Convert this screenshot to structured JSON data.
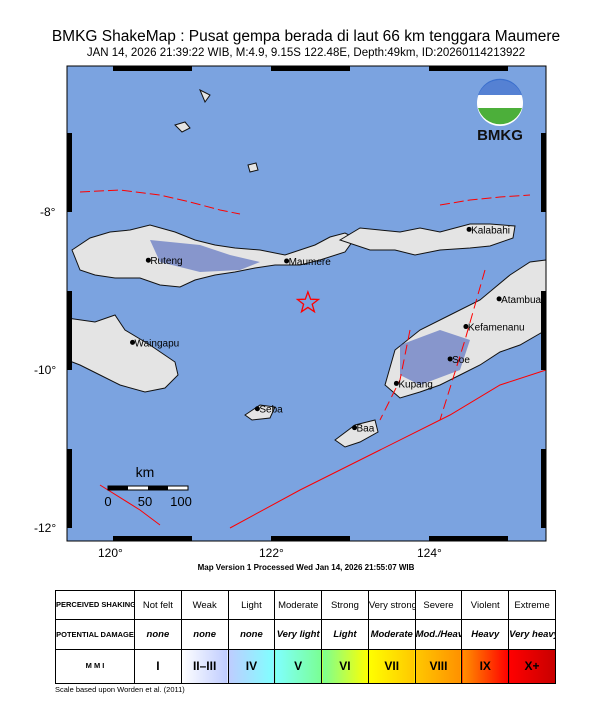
{
  "header": {
    "title": "BMKG ShakeMap : Pusat gempa berada di laut 66 km tenggara Maumere",
    "subtitle": "JAN 14, 2026 21:39:22 WIB, M:4.9, 9.15S 122.48E, Depth:49km, ID:20260114213922"
  },
  "map": {
    "logo_text": "BMKG",
    "epicenter": {
      "lat": -9.15,
      "lon": 122.48,
      "icon": "star-icon",
      "color": "#ff0000"
    },
    "axes": {
      "lat_labels": [
        "-8°",
        "-10°",
        "-12°"
      ],
      "lon_labels": [
        "120°",
        "122°",
        "124°"
      ]
    },
    "cities": [
      {
        "name": "Ruteng",
        "lat": -8.61,
        "lon": 120.46
      },
      {
        "name": "Maumere",
        "lat": -8.62,
        "lon": 122.21
      },
      {
        "name": "Kalabahi",
        "lat": -8.22,
        "lon": 124.52
      },
      {
        "name": "Atambua",
        "lat": -9.1,
        "lon": 124.9
      },
      {
        "name": "Kefamenanu",
        "lat": -9.45,
        "lon": 124.48
      },
      {
        "name": "Soe",
        "lat": -9.86,
        "lon": 124.28
      },
      {
        "name": "Waingapu",
        "lat": -9.65,
        "lon": 120.26
      },
      {
        "name": "Kupang",
        "lat": -10.17,
        "lon": 123.6
      },
      {
        "name": "Seba",
        "lat": -10.49,
        "lon": 121.84
      },
      {
        "name": "Baa",
        "lat": -10.73,
        "lon": 123.07
      }
    ],
    "scalebar": {
      "unit": "km",
      "ticks": [
        "0",
        "50",
        "100"
      ]
    },
    "colors": {
      "sea": "#7ba3e0",
      "land": "#e8e8e8",
      "fault": "#ff0000"
    },
    "version_note": "Map Version 1 Processed Wed Jan 14, 2026 21:55:07 WIB"
  },
  "legend": {
    "row_headers": {
      "shaking": "PERCEIVED SHAKING",
      "damage": "POTENTIAL DAMAGE",
      "mmi": "M M I"
    },
    "columns": [
      {
        "shaking": "Not felt",
        "damage": "none",
        "mmi": "I",
        "color": "#ffffff"
      },
      {
        "shaking": "Weak",
        "damage": "none",
        "mmi": "II–III",
        "color": "#bfccff"
      },
      {
        "shaking": "Light",
        "damage": "none",
        "mmi": "IV",
        "color": "#80ffff"
      },
      {
        "shaking": "Moderate",
        "damage": "Very light",
        "mmi": "V",
        "color": "#7aff93"
      },
      {
        "shaking": "Strong",
        "damage": "Light",
        "mmi": "VI",
        "color": "#ffff00"
      },
      {
        "shaking": "Very strong",
        "damage": "Moderate",
        "mmi": "VII",
        "color": "#ffc800"
      },
      {
        "shaking": "Severe",
        "damage": "Mod./Heavy",
        "mmi": "VIII",
        "color": "#ff9100"
      },
      {
        "shaking": "Violent",
        "damage": "Heavy",
        "mmi": "IX",
        "color": "#ff0000"
      },
      {
        "shaking": "Extreme",
        "damage": "Very heavy",
        "mmi": "X+",
        "color": "#c80000"
      }
    ],
    "credit": "Scale based upon Worden et al. (2011)"
  }
}
